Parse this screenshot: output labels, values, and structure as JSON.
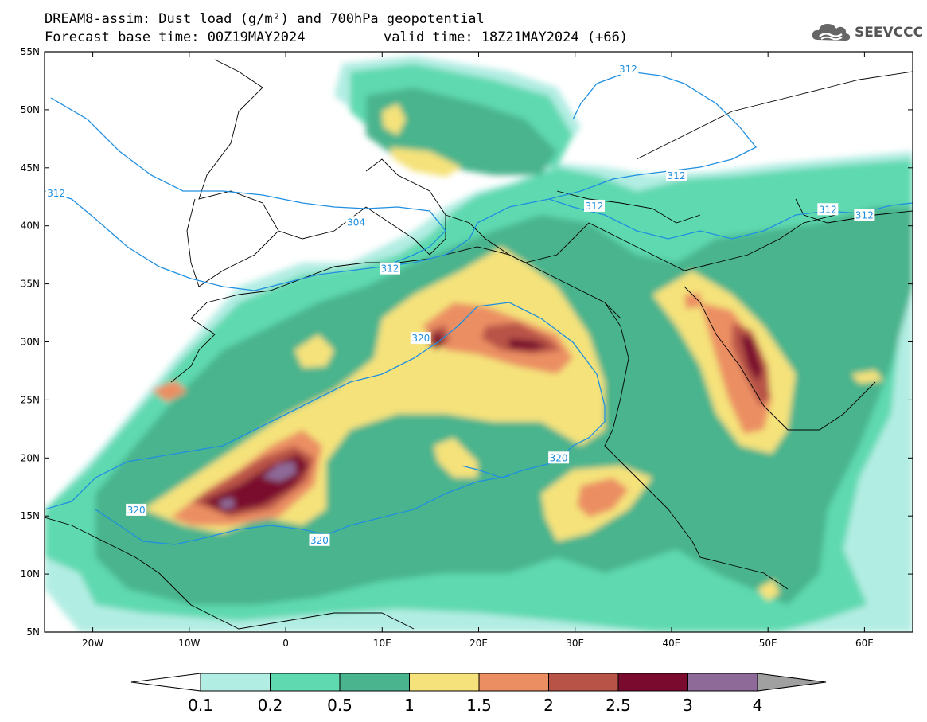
{
  "title": {
    "line1": "DREAM8-assim: Dust load (g/m²) and 700hPa geopotential",
    "line2": "Forecast base time: 00Z19MAY2024",
    "valid": "valid time: 18Z21MAY2024 (+66)"
  },
  "logo": {
    "text": "SEEVCCC",
    "icon": "cloud-icon"
  },
  "axes": {
    "lat_labels": [
      "55N",
      "50N",
      "45N",
      "40N",
      "35N",
      "30N",
      "25N",
      "20N",
      "15N",
      "10N",
      "5N"
    ],
    "lon_labels": [
      "20W",
      "10W",
      "0",
      "10E",
      "20E",
      "30E",
      "40E",
      "50E",
      "60E"
    ],
    "lon_range": [
      -25,
      65
    ],
    "lat_range": [
      5,
      55
    ]
  },
  "colorbar": {
    "labels": [
      "0.1",
      "0.2",
      "0.5",
      "1",
      "1.5",
      "2",
      "2.5",
      "3",
      "4"
    ],
    "colors": [
      "#b2ede3",
      "#5fd9b0",
      "#49b48d",
      "#f5e27a",
      "#eb8f63",
      "#b85347",
      "#7a0a2e",
      "#8e6a99",
      "#a0a0a0"
    ]
  },
  "geopotential": {
    "color": "#1f8fe0",
    "labels": [
      {
        "text": "312",
        "lon": -23.8,
        "lat": 42.8
      },
      {
        "text": "304",
        "lon": 7.3,
        "lat": 40.3
      },
      {
        "text": "312",
        "lon": 10.8,
        "lat": 36.3
      },
      {
        "text": "312",
        "lon": 35.5,
        "lat": 53.5
      },
      {
        "text": "312",
        "lon": 40.5,
        "lat": 44.3
      },
      {
        "text": "312",
        "lon": 32.0,
        "lat": 41.7
      },
      {
        "text": "312",
        "lon": 56.2,
        "lat": 41.4
      },
      {
        "text": "312",
        "lon": 60.0,
        "lat": 40.9
      },
      {
        "text": "320",
        "lon": 14.0,
        "lat": 30.3
      },
      {
        "text": "320",
        "lon": -15.5,
        "lat": 15.5
      },
      {
        "text": "320",
        "lon": 3.5,
        "lat": 12.9
      },
      {
        "text": "320",
        "lon": 28.3,
        "lat": 20.0
      }
    ]
  }
}
